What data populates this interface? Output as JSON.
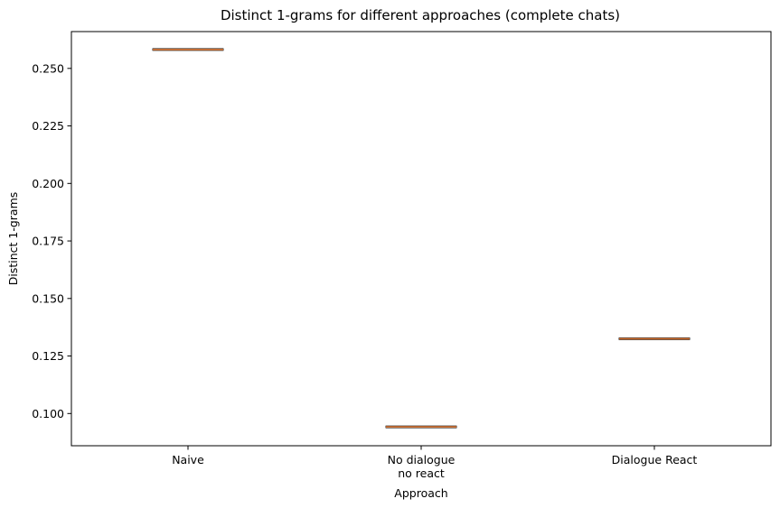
{
  "chart_data": {
    "type": "box",
    "title": "Distinct 1-grams for different approaches (complete chats)",
    "xlabel": "Approach",
    "ylabel": "Distinct 1-grams",
    "categories": [
      [
        "Naive"
      ],
      [
        "No dialogue",
        "no react"
      ],
      [
        "Dialogue React"
      ]
    ],
    "values": [
      0.2582,
      0.0942,
      0.1325
    ],
    "ylim": [
      0.086,
      0.266
    ],
    "yticks": [
      0.1,
      0.125,
      0.15,
      0.175,
      0.2,
      0.225,
      0.25
    ],
    "grid": false,
    "legend": "none"
  },
  "colors": {
    "median": "#e07b39",
    "box": "#000000",
    "axes": "#000000",
    "background": "#ffffff"
  }
}
